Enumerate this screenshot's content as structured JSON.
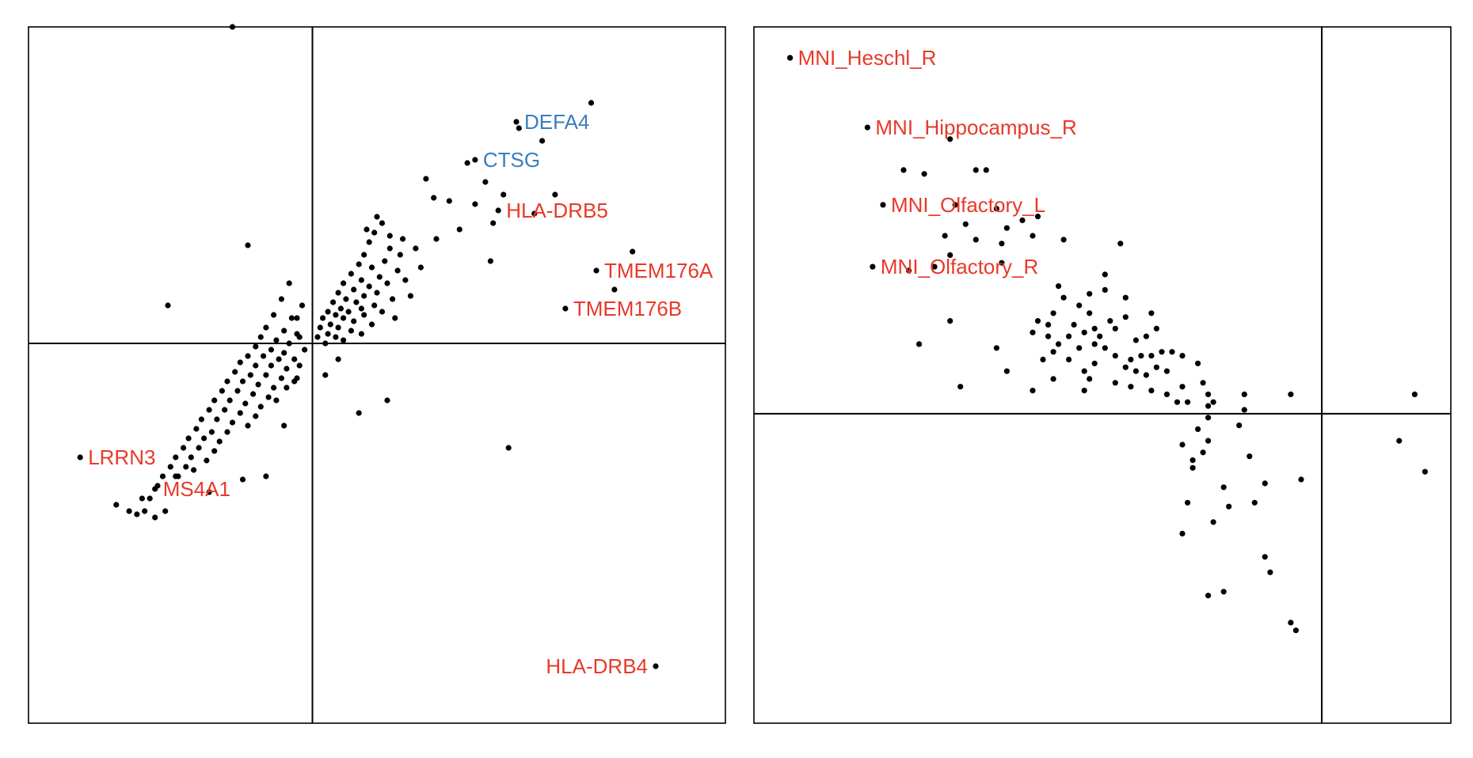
{
  "colors": {
    "point": "#000000",
    "label_red": "#e8392a",
    "label_blue": "#3a7dbe",
    "frame": "#000000"
  },
  "chart_data": [
    {
      "type": "scatter",
      "title": "",
      "xlabel": "",
      "ylabel": "",
      "xlim": [
        -1.1,
        1.6
      ],
      "ylim": [
        -1.2,
        1.0
      ],
      "grid": false,
      "axes": {
        "ticks": false,
        "reference_lines": {
          "x": 0,
          "y": 0
        }
      },
      "labels": [
        {
          "text": "DEFA4",
          "x": 0.79,
          "y": 0.7,
          "color": "blue"
        },
        {
          "text": "CTSG",
          "x": 0.63,
          "y": 0.58,
          "color": "blue"
        },
        {
          "text": "HLA-DRB5",
          "x": 0.72,
          "y": 0.42,
          "color": "red"
        },
        {
          "text": "TMEM176A",
          "x": 1.1,
          "y": 0.23,
          "color": "red"
        },
        {
          "text": "TMEM176B",
          "x": 0.98,
          "y": 0.11,
          "color": "red"
        },
        {
          "text": "HLA-DRB4",
          "x": 1.33,
          "y": -1.02,
          "color": "red"
        },
        {
          "text": "LRRN3",
          "x": -0.9,
          "y": -0.36,
          "color": "red"
        },
        {
          "text": "MS4A1",
          "x": -0.61,
          "y": -0.46,
          "color": "red"
        }
      ],
      "points": [
        [
          -0.31,
          1.0
        ],
        [
          1.08,
          0.76
        ],
        [
          0.8,
          0.68
        ],
        [
          0.89,
          0.64
        ],
        [
          0.6,
          0.57
        ],
        [
          0.44,
          0.52
        ],
        [
          0.67,
          0.51
        ],
        [
          0.74,
          0.47
        ],
        [
          0.94,
          0.47
        ],
        [
          0.47,
          0.46
        ],
        [
          0.53,
          0.45
        ],
        [
          0.63,
          0.44
        ],
        [
          0.86,
          0.41
        ],
        [
          0.7,
          0.38
        ],
        [
          0.57,
          0.36
        ],
        [
          0.48,
          0.33
        ],
        [
          -0.25,
          0.31
        ],
        [
          1.24,
          0.29
        ],
        [
          0.69,
          0.26
        ],
        [
          1.17,
          0.17
        ],
        [
          -0.56,
          0.12
        ],
        [
          -0.05,
          0.02
        ],
        [
          0.1,
          -0.05
        ],
        [
          0.05,
          -0.1
        ],
        [
          -0.06,
          -0.11
        ],
        [
          0.18,
          -0.22
        ],
        [
          0.29,
          -0.18
        ],
        [
          0.76,
          -0.33
        ],
        [
          -0.11,
          -0.26
        ],
        [
          -0.18,
          -0.42
        ],
        [
          -0.27,
          -0.43
        ],
        [
          -0.4,
          -0.47
        ],
        [
          -0.53,
          -0.42
        ],
        [
          -0.66,
          -0.49
        ],
        [
          -0.63,
          -0.49
        ],
        [
          -0.71,
          -0.53
        ],
        [
          -0.76,
          -0.51
        ],
        [
          -0.65,
          -0.53
        ],
        [
          -0.61,
          -0.55
        ],
        [
          -0.68,
          -0.54
        ],
        [
          -0.57,
          -0.53
        ],
        [
          0.25,
          0.4
        ],
        [
          0.27,
          0.38
        ],
        [
          0.24,
          0.35
        ],
        [
          0.22,
          0.32
        ],
        [
          0.3,
          0.3
        ],
        [
          0.2,
          0.28
        ],
        [
          0.28,
          0.26
        ],
        [
          0.18,
          0.25
        ],
        [
          0.23,
          0.24
        ],
        [
          0.33,
          0.23
        ],
        [
          0.15,
          0.22
        ],
        [
          0.26,
          0.21
        ],
        [
          0.19,
          0.2
        ],
        [
          0.12,
          0.19
        ],
        [
          0.29,
          0.19
        ],
        [
          0.22,
          0.18
        ],
        [
          0.16,
          0.17
        ],
        [
          0.1,
          0.16
        ],
        [
          0.25,
          0.16
        ],
        [
          0.2,
          0.15
        ],
        [
          0.13,
          0.14
        ],
        [
          0.31,
          0.14
        ],
        [
          0.08,
          0.13
        ],
        [
          0.17,
          0.13
        ],
        [
          0.24,
          0.12
        ],
        [
          0.11,
          0.11
        ],
        [
          0.19,
          0.11
        ],
        [
          0.06,
          0.1
        ],
        [
          0.14,
          0.1
        ],
        [
          0.27,
          0.1
        ],
        [
          0.09,
          0.09
        ],
        [
          0.2,
          0.09
        ],
        [
          0.04,
          0.08
        ],
        [
          0.12,
          0.08
        ],
        [
          0.16,
          0.07
        ],
        [
          0.07,
          0.06
        ],
        [
          0.23,
          0.06
        ],
        [
          0.03,
          0.05
        ],
        [
          0.1,
          0.05
        ],
        [
          0.15,
          0.04
        ],
        [
          0.06,
          0.03
        ],
        [
          0.19,
          0.03
        ],
        [
          0.02,
          0.02
        ],
        [
          0.09,
          0.02
        ],
        [
          0.12,
          0.01
        ],
        [
          0.05,
          0.0
        ],
        [
          0.34,
          0.28
        ],
        [
          0.36,
          0.2
        ],
        [
          0.38,
          0.15
        ],
        [
          0.32,
          0.08
        ],
        [
          0.4,
          0.3
        ],
        [
          0.35,
          0.33
        ],
        [
          0.21,
          0.36
        ],
        [
          0.3,
          0.34
        ],
        [
          0.42,
          0.24
        ],
        [
          -0.09,
          0.19
        ],
        [
          -0.12,
          0.14
        ],
        [
          -0.15,
          0.09
        ],
        [
          -0.08,
          0.08
        ],
        [
          -0.18,
          0.05
        ],
        [
          -0.11,
          0.04
        ],
        [
          -0.06,
          0.03
        ],
        [
          -0.2,
          0.02
        ],
        [
          -0.14,
          0.01
        ],
        [
          -0.09,
          0.0
        ],
        [
          -0.22,
          -0.01
        ],
        [
          -0.16,
          -0.02
        ],
        [
          -0.11,
          -0.03
        ],
        [
          -0.25,
          -0.04
        ],
        [
          -0.19,
          -0.04
        ],
        [
          -0.13,
          -0.05
        ],
        [
          -0.07,
          -0.05
        ],
        [
          -0.28,
          -0.06
        ],
        [
          -0.22,
          -0.07
        ],
        [
          -0.16,
          -0.07
        ],
        [
          -0.1,
          -0.08
        ],
        [
          -0.3,
          -0.09
        ],
        [
          -0.24,
          -0.1
        ],
        [
          -0.18,
          -0.1
        ],
        [
          -0.12,
          -0.11
        ],
        [
          -0.33,
          -0.12
        ],
        [
          -0.27,
          -0.12
        ],
        [
          -0.21,
          -0.13
        ],
        [
          -0.15,
          -0.14
        ],
        [
          -0.35,
          -0.15
        ],
        [
          -0.29,
          -0.15
        ],
        [
          -0.23,
          -0.16
        ],
        [
          -0.17,
          -0.17
        ],
        [
          -0.38,
          -0.18
        ],
        [
          -0.32,
          -0.18
        ],
        [
          -0.26,
          -0.19
        ],
        [
          -0.2,
          -0.2
        ],
        [
          -0.4,
          -0.21
        ],
        [
          -0.34,
          -0.21
        ],
        [
          -0.28,
          -0.22
        ],
        [
          -0.22,
          -0.23
        ],
        [
          -0.43,
          -0.24
        ],
        [
          -0.37,
          -0.24
        ],
        [
          -0.31,
          -0.25
        ],
        [
          -0.25,
          -0.26
        ],
        [
          -0.45,
          -0.27
        ],
        [
          -0.39,
          -0.28
        ],
        [
          -0.33,
          -0.28
        ],
        [
          -0.48,
          -0.3
        ],
        [
          -0.42,
          -0.3
        ],
        [
          -0.36,
          -0.31
        ],
        [
          -0.5,
          -0.33
        ],
        [
          -0.44,
          -0.33
        ],
        [
          -0.38,
          -0.34
        ],
        [
          -0.53,
          -0.36
        ],
        [
          -0.47,
          -0.36
        ],
        [
          -0.41,
          -0.37
        ],
        [
          -0.55,
          -0.39
        ],
        [
          -0.49,
          -0.39
        ],
        [
          -0.58,
          -0.42
        ],
        [
          -0.52,
          -0.42
        ],
        [
          -0.46,
          -0.4
        ],
        [
          -0.6,
          -0.45
        ],
        [
          -0.14,
          -0.18
        ],
        [
          -0.1,
          -0.14
        ],
        [
          -0.07,
          -0.12
        ],
        [
          -0.05,
          -0.07
        ],
        [
          -0.03,
          -0.02
        ],
        [
          -0.06,
          0.08
        ],
        [
          -0.04,
          0.12
        ]
      ]
    },
    {
      "type": "scatter",
      "title": "",
      "xlabel": "",
      "ylabel": "",
      "xlim": [
        -1.1,
        0.25
      ],
      "ylim": [
        -0.8,
        1.0
      ],
      "grid": false,
      "axes": {
        "ticks": false,
        "reference_lines": {
          "x": 0,
          "y": 0
        }
      },
      "labels": [
        {
          "text": "MNI_Heschl_R",
          "x": -1.03,
          "y": 0.92,
          "color": "red"
        },
        {
          "text": "MNI_Hippocampus_R",
          "x": -0.88,
          "y": 0.74,
          "color": "red"
        },
        {
          "text": "MNI_Olfactory_L",
          "x": -0.85,
          "y": 0.54,
          "color": "red"
        },
        {
          "text": "MNI_Olfactory_R",
          "x": -0.87,
          "y": 0.38,
          "color": "red"
        }
      ],
      "points": [
        [
          -1.03,
          0.92
        ],
        [
          -0.72,
          0.71
        ],
        [
          -0.81,
          0.63
        ],
        [
          -0.77,
          0.62
        ],
        [
          -0.67,
          0.63
        ],
        [
          -0.65,
          0.63
        ],
        [
          -0.55,
          0.51
        ],
        [
          -0.63,
          0.53
        ],
        [
          -0.71,
          0.54
        ],
        [
          -0.69,
          0.49
        ],
        [
          -0.61,
          0.48
        ],
        [
          -0.58,
          0.5
        ],
        [
          -0.67,
          0.45
        ],
        [
          -0.62,
          0.44
        ],
        [
          -0.73,
          0.46
        ],
        [
          -0.56,
          0.46
        ],
        [
          -0.5,
          0.45
        ],
        [
          -0.39,
          0.44
        ],
        [
          -0.42,
          0.36
        ],
        [
          -0.42,
          0.32
        ],
        [
          -0.72,
          0.41
        ],
        [
          -0.62,
          0.39
        ],
        [
          -0.75,
          0.38
        ],
        [
          -0.8,
          0.37
        ],
        [
          -0.51,
          0.33
        ],
        [
          -0.45,
          0.31
        ],
        [
          -0.47,
          0.28
        ],
        [
          -0.38,
          0.3
        ],
        [
          -0.55,
          0.24
        ],
        [
          -0.72,
          0.24
        ],
        [
          -0.78,
          0.18
        ],
        [
          -0.7,
          0.07
        ],
        [
          -0.61,
          0.11
        ],
        [
          -0.52,
          0.09
        ],
        [
          -0.56,
          0.06
        ],
        [
          -0.63,
          0.17
        ],
        [
          -0.56,
          0.21
        ],
        [
          -0.53,
          0.23
        ],
        [
          -0.48,
          0.23
        ],
        [
          -0.46,
          0.21
        ],
        [
          -0.43,
          0.2
        ],
        [
          -0.4,
          0.22
        ],
        [
          -0.52,
          0.26
        ],
        [
          -0.5,
          0.3
        ],
        [
          -0.49,
          0.2
        ],
        [
          -0.47,
          0.17
        ],
        [
          -0.44,
          0.18
        ],
        [
          -0.42,
          0.17
        ],
        [
          -0.4,
          0.15
        ],
        [
          -0.37,
          0.14
        ],
        [
          -0.35,
          0.15
        ],
        [
          -0.33,
          0.15
        ],
        [
          -0.31,
          0.16
        ],
        [
          -0.29,
          0.16
        ],
        [
          -0.27,
          0.15
        ],
        [
          -0.24,
          0.13
        ],
        [
          -0.38,
          0.12
        ],
        [
          -0.36,
          0.11
        ],
        [
          -0.34,
          0.1
        ],
        [
          -0.32,
          0.12
        ],
        [
          -0.3,
          0.11
        ],
        [
          -0.44,
          0.13
        ],
        [
          -0.46,
          0.11
        ],
        [
          -0.49,
          0.14
        ],
        [
          -0.51,
          0.18
        ],
        [
          -0.53,
          0.2
        ],
        [
          -0.36,
          0.19
        ],
        [
          -0.34,
          0.2
        ],
        [
          -0.32,
          0.22
        ],
        [
          -0.33,
          0.26
        ],
        [
          -0.38,
          0.25
        ],
        [
          -0.45,
          0.26
        ],
        [
          -0.44,
          0.22
        ],
        [
          -0.41,
          0.24
        ],
        [
          -0.52,
          0.16
        ],
        [
          -0.54,
          0.14
        ],
        [
          -0.45,
          0.09
        ],
        [
          -0.46,
          0.06
        ],
        [
          -0.4,
          0.08
        ],
        [
          -0.37,
          0.07
        ],
        [
          -0.3,
          0.05
        ],
        [
          -0.27,
          0.07
        ],
        [
          -0.23,
          0.08
        ],
        [
          -0.22,
          0.05
        ],
        [
          -0.26,
          0.03
        ],
        [
          -0.28,
          0.03
        ],
        [
          -0.21,
          0.03
        ],
        [
          -0.15,
          0.05
        ],
        [
          -0.15,
          0.01
        ],
        [
          -0.22,
          0.02
        ],
        [
          -0.22,
          -0.01
        ],
        [
          -0.24,
          -0.04
        ],
        [
          -0.22,
          -0.07
        ],
        [
          -0.06,
          0.05
        ],
        [
          -0.33,
          0.06
        ],
        [
          -0.16,
          -0.03
        ],
        [
          -0.25,
          -0.12
        ],
        [
          -0.25,
          -0.14
        ],
        [
          -0.14,
          -0.11
        ],
        [
          -0.11,
          -0.18
        ],
        [
          -0.19,
          -0.19
        ],
        [
          -0.13,
          -0.23
        ],
        [
          -0.04,
          -0.17
        ],
        [
          -0.18,
          -0.24
        ],
        [
          -0.26,
          -0.23
        ],
        [
          -0.21,
          -0.28
        ],
        [
          -0.27,
          -0.31
        ],
        [
          -0.11,
          -0.37
        ],
        [
          -0.1,
          -0.41
        ],
        [
          -0.06,
          -0.54
        ],
        [
          -0.19,
          -0.46
        ],
        [
          -0.05,
          -0.56
        ],
        [
          -0.22,
          -0.47
        ],
        [
          -0.23,
          -0.1
        ],
        [
          -0.27,
          -0.08
        ],
        [
          0.18,
          0.05
        ],
        [
          0.15,
          -0.07
        ],
        [
          0.2,
          -0.15
        ]
      ]
    }
  ]
}
